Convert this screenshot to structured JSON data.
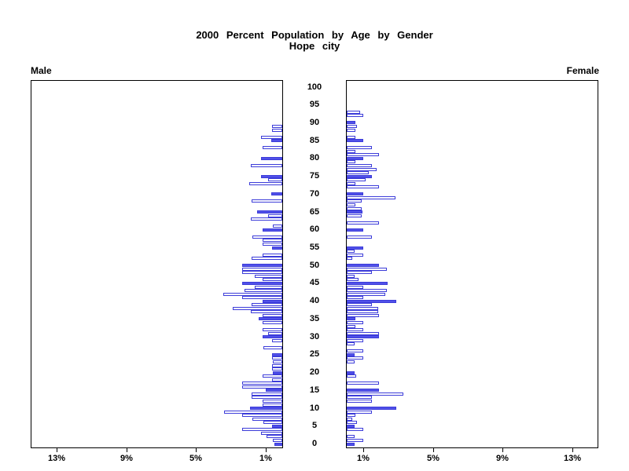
{
  "title": {
    "line1": "2000 Percent Population by Age by Gender",
    "line2": "Hope city"
  },
  "panels": {
    "male_label": "Male",
    "female_label": "Female"
  },
  "chart_data": {
    "type": "bar",
    "subtype": "population-pyramid",
    "title": "2000 Percent Population by Age by Gender",
    "subtitle": "Hope city",
    "unit": "%",
    "age_min": 0,
    "age_max": 93,
    "filled_every": 5,
    "axis": {
      "pct_ticks": [
        1,
        5,
        9,
        13
      ],
      "pct_tick_suffix": "%",
      "pct_max": 14.5,
      "age_ticks": [
        0,
        5,
        10,
        15,
        20,
        25,
        30,
        35,
        40,
        45,
        50,
        55,
        60,
        65,
        70,
        75,
        80,
        85,
        90,
        95,
        100
      ],
      "grid": false
    },
    "series": [
      {
        "name": "Male",
        "side": "left",
        "values_by_age": [
          0.45,
          0.55,
          0.9,
          1.2,
          2.3,
          0.6,
          1.1,
          1.7,
          2.3,
          3.35,
          1.85,
          1.15,
          1.15,
          1.75,
          1.75,
          0.95,
          2.3,
          2.3,
          0.6,
          1.15,
          0.55,
          0.6,
          0.6,
          0.55,
          0.6,
          0.6,
          0,
          1.1,
          0,
          0.6,
          1.15,
          0.8,
          1.15,
          0,
          1.15,
          1.35,
          1.15,
          1.8,
          2.85,
          1.75,
          1.15,
          2.3,
          3.4,
          2.15,
          1.6,
          2.3,
          1.15,
          1.6,
          2.3,
          2.3,
          2.3,
          0,
          1.75,
          1.15,
          0,
          0.6,
          1.15,
          1.15,
          1.7,
          0,
          1.15,
          0.55,
          0,
          1.8,
          0.8,
          1.45,
          0,
          0,
          1.75,
          0,
          0.65,
          0,
          0,
          1.9,
          0.8,
          1.2,
          0,
          0,
          1.8,
          0,
          1.2,
          0,
          0,
          1.15,
          0,
          0.65,
          1.2,
          0,
          0.6,
          0.6,
          0,
          0,
          0,
          0
        ]
      },
      {
        "name": "Female",
        "side": "right",
        "values_by_age": [
          0.45,
          0.95,
          0.45,
          0,
          0.95,
          0.45,
          0.6,
          0.3,
          0.5,
          1.45,
          2.85,
          0,
          1.45,
          1.45,
          3.25,
          1.85,
          0,
          1.85,
          0,
          0.55,
          0.45,
          0,
          0,
          0.45,
          0.95,
          0.45,
          0.95,
          0,
          0.45,
          0.95,
          1.85,
          1.85,
          0.95,
          0.5,
          0.95,
          0.5,
          1.85,
          1.8,
          1.8,
          1.45,
          2.85,
          0.95,
          2.2,
          2.3,
          0.95,
          2.35,
          0.7,
          0.45,
          1.45,
          2.3,
          1.85,
          0,
          0.3,
          0.95,
          0.45,
          0.95,
          0,
          0,
          1.45,
          0,
          0.95,
          0,
          1.85,
          0,
          0.85,
          0.9,
          0.85,
          0.5,
          0.85,
          2.8,
          0.95,
          0,
          1.85,
          0.5,
          1.1,
          1.45,
          1.25,
          1.7,
          1.45,
          0.5,
          0.95,
          1.85,
          0.5,
          1.45,
          0,
          0.95,
          0.5,
          0,
          0.5,
          0.6,
          0.5,
          0,
          0.95,
          0.75
        ]
      }
    ],
    "colors": {
      "bar_fill": "#5151e9",
      "bar_border": "#3c3cd9",
      "frame": "#000000",
      "background": "#ffffff"
    }
  }
}
